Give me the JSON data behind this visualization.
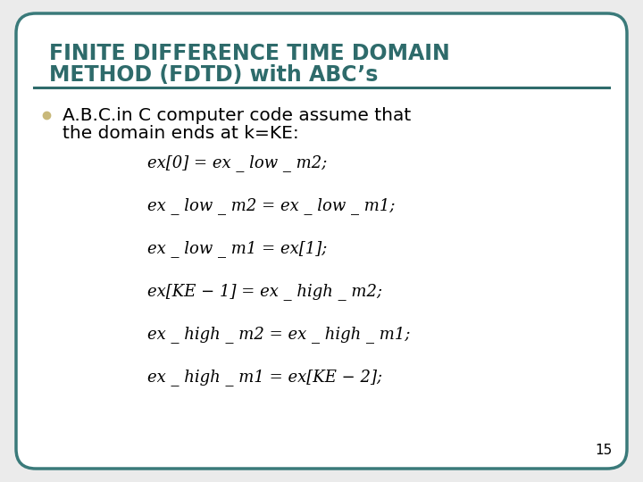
{
  "title_line1": "FINITE DIFFERENCE TIME DOMAIN",
  "title_line2": "METHOD (FDTD) with ABC’s",
  "title_color": "#2e6b6b",
  "title_fontsize": 17,
  "bullet_text_line1": "A.B.C.in C computer code assume that",
  "bullet_text_line2": "the domain ends at k=KE:",
  "bullet_color": "#c8b87a",
  "bullet_fontsize": 14.5,
  "bg_color": "#ebebeb",
  "border_color": "#3a7a7a",
  "divider_color": "#2e6b6b",
  "page_number": "15",
  "eq_fontsize": 13,
  "equations": [
    "ex[0] = ex _ low _ m2;",
    "ex _ low _ m2 = ex _ low _ m1;",
    "ex _ low _ m1 = ex[1];",
    "ex[KE − 1] = ex _ high _ m2;",
    "ex _ high _ m2 = ex _ high _ m1;",
    "ex _ high _ m1 = ex[KE − 2];"
  ]
}
